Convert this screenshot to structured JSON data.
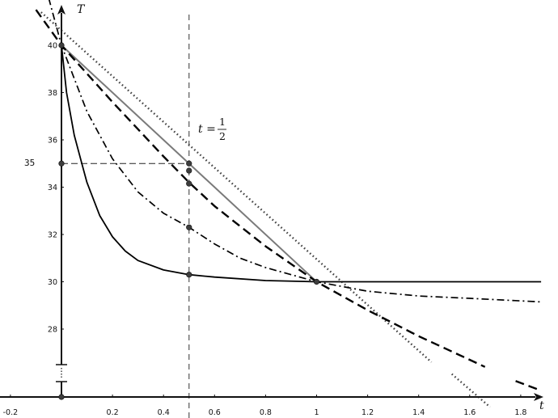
{
  "chart_data": {
    "type": "line",
    "xlabel": "t",
    "ylabel": "T",
    "xlim": [
      -0.25,
      1.9
    ],
    "ylim": [
      24.5,
      42
    ],
    "grid": false,
    "x_ticks": [
      "-0.2",
      "0.2",
      "0.4",
      "0.6",
      "0.8",
      "1",
      "1.2",
      "1.4",
      "1.6",
      "1.8"
    ],
    "y_ticks": [
      "28",
      "30",
      "32",
      "34",
      "36",
      "38",
      "40"
    ],
    "y_axis_break": true,
    "annotation": {
      "lhs": "t =",
      "numerator": "1",
      "denominator": "2",
      "x": 0.5
    },
    "highlight_label": {
      "text": "35",
      "y": 35
    },
    "series": [
      {
        "style": "solid-gray",
        "x": [
          0,
          1
        ],
        "y": [
          40,
          30
        ]
      },
      {
        "style": "dotted",
        "x": [
          -0.08,
          1.45
        ],
        "y": [
          41.4,
          26.6
        ]
      },
      {
        "style": "dotted",
        "x": [
          1.53,
          1.68
        ],
        "y": [
          26.1,
          24.7
        ]
      },
      {
        "style": "dashed",
        "x": [
          -0.1,
          0,
          0.2,
          0.4,
          0.5,
          0.6,
          0.8,
          1,
          1.2,
          1.4,
          1.6,
          1.66
        ],
        "y": [
          41.5,
          40,
          37.6,
          35.3,
          34.2,
          33.2,
          31.5,
          30,
          28.8,
          27.7,
          26.7,
          26.4
        ]
      },
      {
        "style": "dashed",
        "x": [
          1.78,
          1.88
        ],
        "y": [
          25.8,
          25.4
        ]
      },
      {
        "style": "dash-dot",
        "x": [
          -0.05,
          0,
          0.1,
          0.2,
          0.3,
          0.4,
          0.5,
          0.6,
          0.7,
          0.8,
          0.9,
          1,
          1.2,
          1.4,
          1.6,
          1.88
        ],
        "y": [
          42,
          40,
          37.2,
          35.2,
          33.8,
          32.9,
          32.3,
          31.6,
          31,
          30.6,
          30.3,
          30,
          29.6,
          29.4,
          29.3,
          29.15
        ]
      },
      {
        "style": "solid",
        "x": [
          0,
          0.02,
          0.05,
          0.08,
          0.1,
          0.15,
          0.2,
          0.25,
          0.3,
          0.4,
          0.5,
          0.6,
          0.8,
          1,
          1.4,
          1.88
        ],
        "y": [
          40,
          38,
          36.2,
          35,
          34.2,
          32.8,
          31.9,
          31.3,
          30.9,
          30.5,
          30.3,
          30.2,
          30.05,
          30,
          30,
          30
        ]
      }
    ],
    "points": [
      {
        "x": 0,
        "y": 40
      },
      {
        "x": 0,
        "y": 35
      },
      {
        "x": 0,
        "y": 24.5
      },
      {
        "x": 0.5,
        "y": 35
      },
      {
        "x": 0.5,
        "y": 34.7
      },
      {
        "x": 0.5,
        "y": 34.15
      },
      {
        "x": 0.5,
        "y": 32.3
      },
      {
        "x": 0.5,
        "y": 30.3
      },
      {
        "x": 1,
        "y": 30
      }
    ]
  }
}
